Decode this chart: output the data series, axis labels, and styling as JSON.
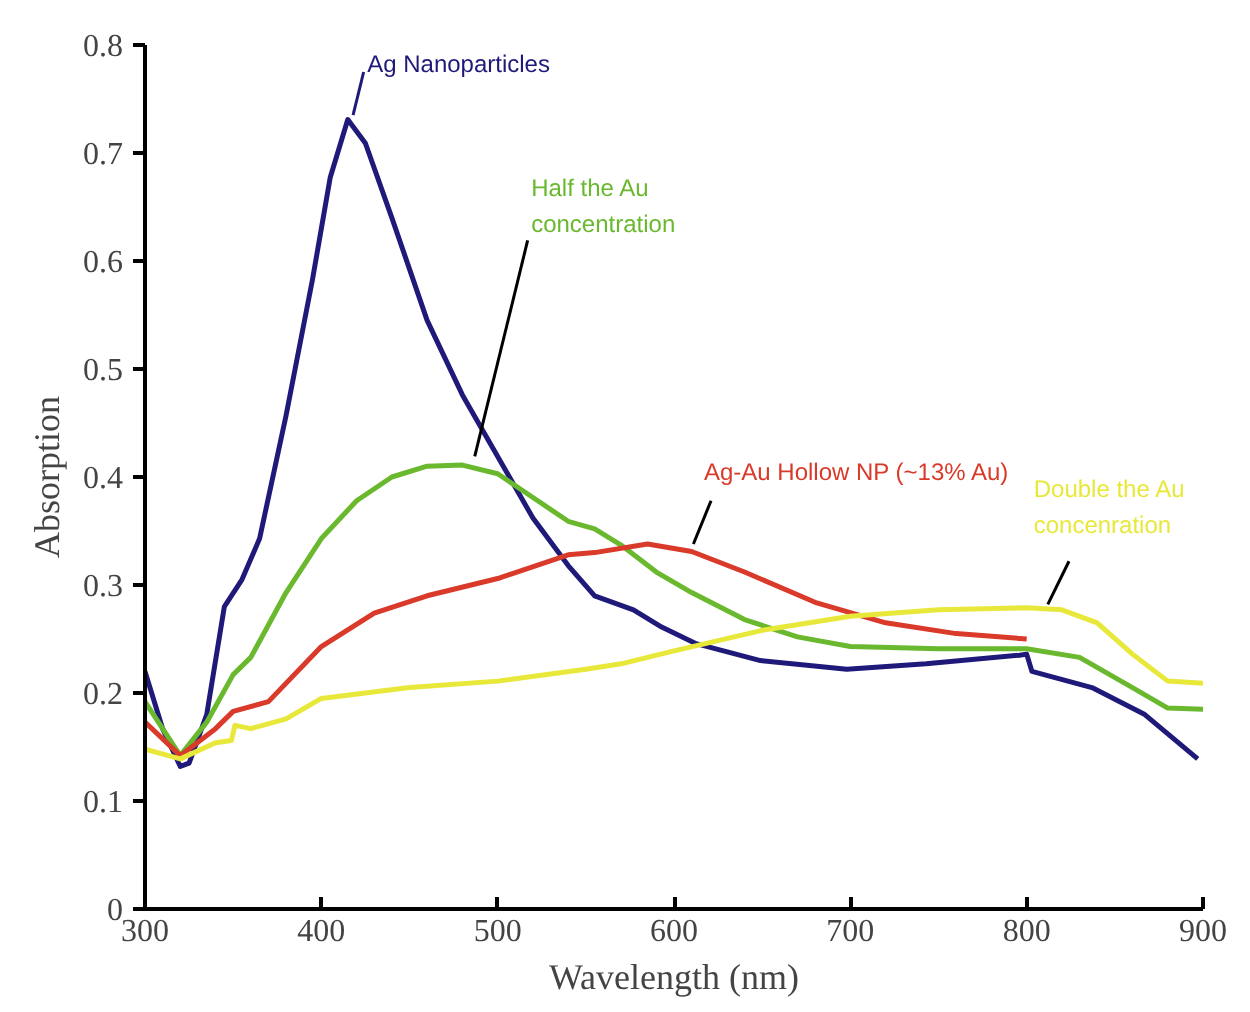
{
  "chart_data": {
    "type": "line",
    "xlabel": "Wavelength (nm)",
    "ylabel": "Absorption",
    "xlim": [
      300,
      900
    ],
    "ylim": [
      0,
      0.8
    ],
    "xticks": [
      300,
      400,
      500,
      600,
      700,
      800,
      900
    ],
    "yticks": [
      0,
      0.1,
      0.2,
      0.3,
      0.4,
      0.5,
      0.6,
      0.7,
      0.8
    ],
    "line_style": "solid",
    "series": [
      {
        "color": "#1f1a7a",
        "x": [
          300,
          310,
          320,
          325,
          335,
          345,
          355,
          365,
          380,
          395,
          405,
          415,
          425,
          440,
          460,
          480,
          500,
          520,
          540,
          555,
          577,
          593,
          612,
          649,
          698,
          743,
          796,
          800,
          803,
          837,
          867,
          897
        ],
        "values": [
          0.22,
          0.167,
          0.132,
          0.135,
          0.18,
          0.28,
          0.305,
          0.343,
          0.457,
          0.583,
          0.677,
          0.731,
          0.709,
          0.64,
          0.545,
          0.476,
          0.419,
          0.362,
          0.318,
          0.29,
          0.277,
          0.261,
          0.246,
          0.23,
          0.222,
          0.227,
          0.235,
          0.236,
          0.22,
          0.205,
          0.18,
          0.139
        ]
      },
      {
        "color": "#6ab82e",
        "x": [
          300,
          320,
          335,
          350,
          360,
          380,
          400,
          420,
          440,
          460,
          480,
          500,
          520,
          540,
          555,
          570,
          590,
          610,
          640,
          670,
          700,
          750,
          800,
          830,
          860,
          880,
          900
        ],
        "values": [
          0.192,
          0.142,
          0.173,
          0.217,
          0.233,
          0.293,
          0.343,
          0.378,
          0.4,
          0.41,
          0.411,
          0.403,
          0.381,
          0.359,
          0.352,
          0.337,
          0.312,
          0.293,
          0.268,
          0.252,
          0.243,
          0.241,
          0.241,
          0.233,
          0.205,
          0.186,
          0.185
        ]
      },
      {
        "color": "#d93a2a",
        "x": [
          300,
          320,
          340,
          350,
          370,
          400,
          430,
          460,
          500,
          540,
          555,
          585,
          610,
          640,
          680,
          720,
          760,
          800
        ],
        "values": [
          0.173,
          0.142,
          0.167,
          0.183,
          0.192,
          0.243,
          0.274,
          0.29,
          0.306,
          0.328,
          0.33,
          0.338,
          0.331,
          0.312,
          0.284,
          0.265,
          0.255,
          0.25
        ]
      },
      {
        "color": "#e8e83a",
        "x": [
          300,
          320,
          340,
          349,
          351,
          360,
          380,
          400,
          450,
          500,
          550,
          570,
          600,
          650,
          700,
          750,
          800,
          820,
          840,
          860,
          880,
          900
        ],
        "values": [
          0.148,
          0.139,
          0.154,
          0.156,
          0.17,
          0.167,
          0.176,
          0.195,
          0.205,
          0.211,
          0.222,
          0.227,
          0.239,
          0.258,
          0.271,
          0.277,
          0.279,
          0.277,
          0.265,
          0.236,
          0.211,
          0.209
        ]
      }
    ],
    "annotations": [
      {
        "text": "Ag Nanoparticles",
        "x": 418,
        "y": 0.735
      },
      {
        "text": "Half the Au\nconcentration",
        "x": 487,
        "y": 0.419
      },
      {
        "text": "Ag-Au Hollow NP (~13% Au)",
        "x": 611,
        "y": 0.338
      },
      {
        "text": "Double the Au\nconcenration",
        "x": 812,
        "y": 0.282
      }
    ]
  }
}
